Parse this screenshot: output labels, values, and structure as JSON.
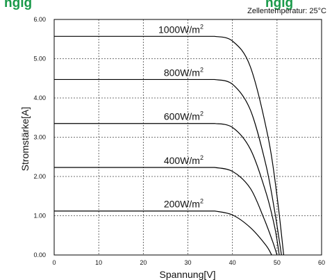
{
  "title_fragment": "ngig",
  "subtitle_fragment": "ngig",
  "annotation": "Zellentemperatur: 25°C",
  "chart_data": {
    "type": "line",
    "xlabel": "Spannung[V]",
    "ylabel": "Stromstärke[A]",
    "xlim": [
      0,
      60
    ],
    "ylim": [
      0,
      6
    ],
    "x_ticks": [
      "0",
      "10",
      "20",
      "30",
      "40",
      "50",
      "60"
    ],
    "y_ticks": [
      "0.00",
      "1.00",
      "2.00",
      "3.00",
      "4.00",
      "5.00",
      "6.00"
    ],
    "grid": true,
    "series": [
      {
        "name": "1000W/m2",
        "label_main": "1000W/m",
        "label_sup": "2",
        "x": [
          0,
          36,
          40,
          44,
          48,
          50,
          51.5
        ],
        "y": [
          5.57,
          5.57,
          5.45,
          4.8,
          3.0,
          1.5,
          0
        ]
      },
      {
        "name": "800W/m2",
        "label_main": "800W/m",
        "label_sup": "2",
        "x": [
          0,
          36,
          40,
          44,
          47.5,
          49.5,
          51.0
        ],
        "y": [
          4.47,
          4.47,
          4.35,
          3.7,
          2.3,
          1.1,
          0
        ]
      },
      {
        "name": "600W/m2",
        "label_main": "600W/m",
        "label_sup": "2",
        "x": [
          0,
          36,
          40,
          44,
          47.5,
          49.5,
          50.5
        ],
        "y": [
          3.35,
          3.35,
          3.25,
          2.7,
          1.6,
          0.7,
          0
        ]
      },
      {
        "name": "400W/m2",
        "label_main": "400W/m",
        "label_sup": "2",
        "x": [
          0,
          36,
          40,
          44,
          47,
          49,
          50.0
        ],
        "y": [
          2.23,
          2.23,
          2.13,
          1.7,
          0.95,
          0.35,
          0
        ]
      },
      {
        "name": "200W/m2",
        "label_main": "200W/m",
        "label_sup": "2",
        "x": [
          0,
          36,
          40,
          44,
          47.5,
          48.8
        ],
        "y": [
          1.12,
          1.12,
          1.02,
          0.7,
          0.25,
          0
        ]
      }
    ]
  }
}
